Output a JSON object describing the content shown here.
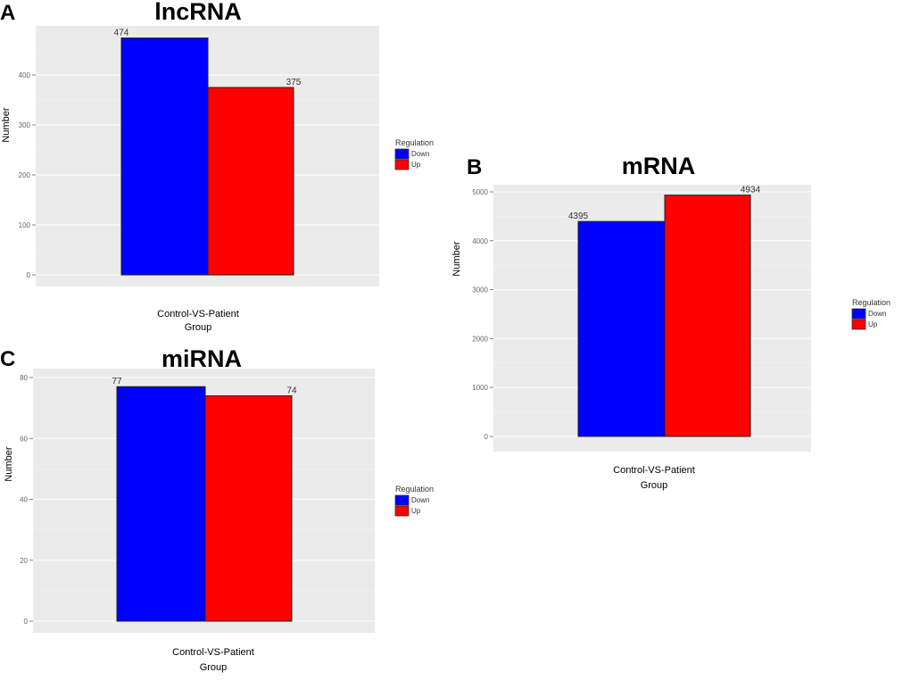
{
  "colors": {
    "down": "#0000ff",
    "up": "#ff0000",
    "panel_bg": "#ebebeb",
    "grid": "#ffffff"
  },
  "chart_data": [
    {
      "type": "bar",
      "panel_letter": "A",
      "title": "lncRNA",
      "xlabel": "Control-VS-Patient",
      "xlabel2": "Group",
      "ylabel": "Number",
      "categories": [
        "Control-VS-Patient"
      ],
      "series": [
        {
          "name": "Down",
          "values": [
            474
          ]
        },
        {
          "name": "Up",
          "values": [
            375
          ]
        }
      ],
      "yticks": [
        0,
        100,
        200,
        300,
        400
      ],
      "ylim": [
        0,
        520
      ],
      "legend": {
        "title": "Regulation",
        "items": [
          "Down",
          "Up"
        ],
        "placement": "right"
      }
    },
    {
      "type": "bar",
      "panel_letter": "B",
      "title": "mRNA",
      "xlabel": "Control-VS-Patient",
      "xlabel2": "Group",
      "ylabel": "Number",
      "categories": [
        "Control-VS-Patient"
      ],
      "series": [
        {
          "name": "Down",
          "values": [
            4395
          ]
        },
        {
          "name": "Up",
          "values": [
            4934
          ]
        }
      ],
      "yticks": [
        0,
        1000,
        2000,
        3000,
        4000,
        5000
      ],
      "ylim": [
        0,
        5150
      ],
      "legend": {
        "title": "Regulation",
        "items": [
          "Down",
          "Up"
        ],
        "placement": "right"
      }
    },
    {
      "type": "bar",
      "panel_letter": "C",
      "title": "miRNA",
      "xlabel": "Control-VS-Patient",
      "xlabel2": "Group",
      "ylabel": "Number",
      "categories": [
        "Control-VS-Patient"
      ],
      "series": [
        {
          "name": "Down",
          "values": [
            77
          ]
        },
        {
          "name": "Up",
          "values": [
            74
          ]
        }
      ],
      "yticks": [
        0,
        20,
        40,
        60,
        80
      ],
      "ylim": [
        0,
        80
      ],
      "legend": {
        "title": "Regulation",
        "items": [
          "Down",
          "Up"
        ],
        "placement": "right"
      }
    }
  ]
}
